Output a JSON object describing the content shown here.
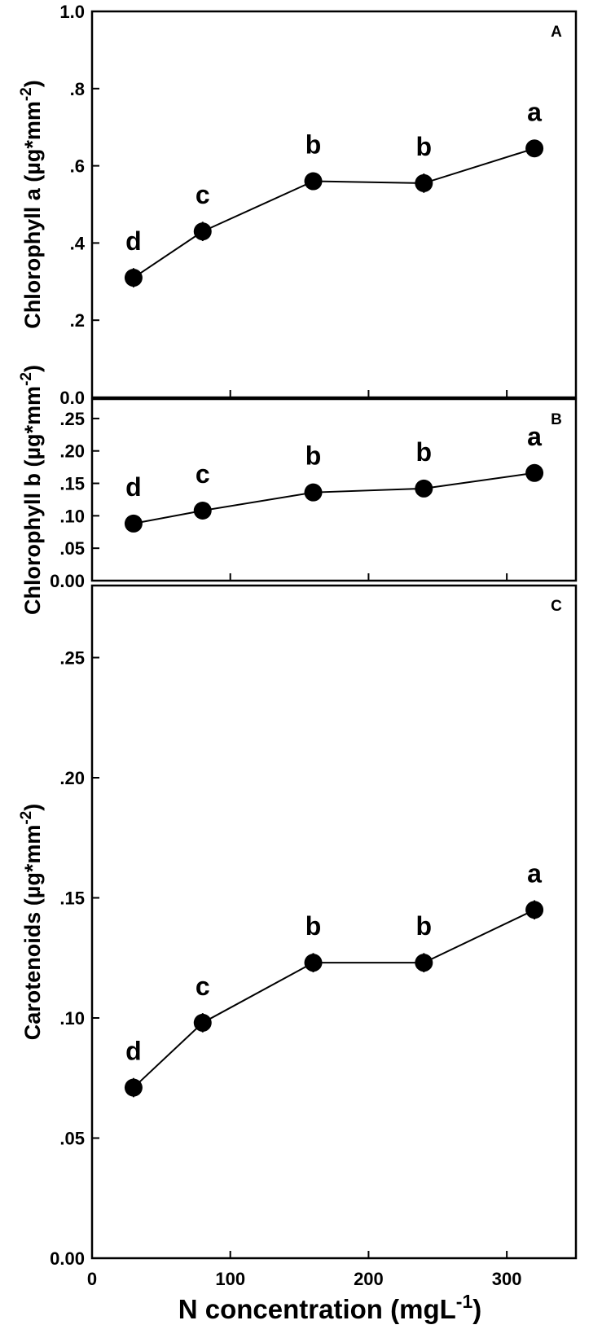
{
  "chart_data": [
    {
      "type": "line",
      "panel_label": "A",
      "ylabel": "Chlorophyll a (µg*mm",
      "ylabel_sup": "-2",
      "ylabel_end": ")",
      "ylim": [
        0,
        1.0
      ],
      "yticks": [
        0,
        0.2,
        0.4,
        0.6,
        0.8,
        1.0
      ],
      "ytick_labels": [
        "0.0",
        ".2",
        ".4",
        ".6",
        ".8",
        "1.0"
      ],
      "xlim": [
        0,
        350
      ],
      "xticks": [
        0,
        100,
        200,
        300
      ],
      "x": [
        30,
        80,
        160,
        240,
        320
      ],
      "values": [
        0.31,
        0.43,
        0.56,
        0.555,
        0.645
      ],
      "errors": [
        0.025,
        0.025,
        0.015,
        0.025,
        0.012
      ],
      "significance": [
        "d",
        "c",
        "b",
        "b",
        "a"
      ],
      "grid": false
    },
    {
      "type": "line",
      "panel_label": "B",
      "ylabel": "Chlorophyll b (µg*mm",
      "ylabel_sup": "-2",
      "ylabel_end": ")",
      "ylim": [
        0,
        0.28
      ],
      "yticks": [
        0,
        0.05,
        0.1,
        0.15,
        0.2,
        0.25
      ],
      "ytick_labels": [
        "0.00",
        ".05",
        ".10",
        ".15",
        ".20",
        ".25"
      ],
      "xlim": [
        0,
        350
      ],
      "xticks": [
        0,
        100,
        200,
        300
      ],
      "x": [
        30,
        80,
        160,
        240,
        320
      ],
      "values": [
        0.088,
        0.108,
        0.136,
        0.142,
        0.166
      ],
      "errors": [
        0.01,
        0.005,
        0.005,
        0.01,
        0.004
      ],
      "significance": [
        "d",
        "c",
        "b",
        "b",
        "a"
      ],
      "grid": false
    },
    {
      "type": "line",
      "panel_label": "C",
      "ylabel": "Carotenoids (µg*mm",
      "ylabel_sup": "-2",
      "ylabel_end": ")",
      "ylim": [
        0,
        0.28
      ],
      "yticks": [
        0,
        0.05,
        0.1,
        0.15,
        0.2,
        0.25
      ],
      "ytick_labels": [
        "0.00",
        ".05",
        ".10",
        ".15",
        ".20",
        ".25"
      ],
      "xlim": [
        0,
        350
      ],
      "xticks": [
        0,
        100,
        200,
        300
      ],
      "xtick_labels": [
        "0",
        "100",
        "200",
        "300"
      ],
      "x": [
        30,
        80,
        160,
        240,
        320
      ],
      "values": [
        0.071,
        0.098,
        0.123,
        0.123,
        0.145
      ],
      "errors": [
        0.004,
        0.004,
        0.004,
        0.004,
        0.004
      ],
      "significance": [
        "d",
        "c",
        "b",
        "b",
        "a"
      ],
      "grid": false
    }
  ],
  "xlabel": "N concentration (mgL",
  "xlabel_sup": "-1",
  "xlabel_end": ")"
}
